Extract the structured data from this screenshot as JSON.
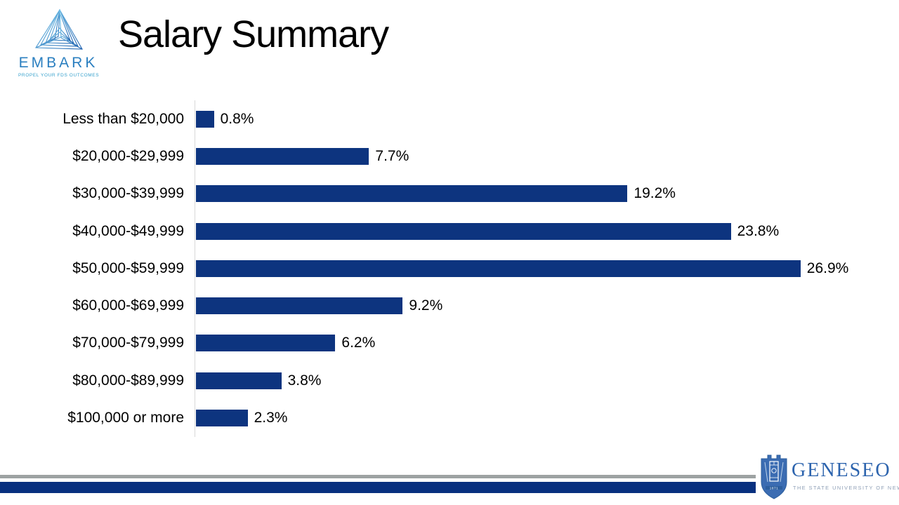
{
  "slide": {
    "title": "Salary Summary"
  },
  "logos": {
    "embark": {
      "name": "EMBARK",
      "tagline": "PROPEL YOUR FDS OUTCOMES"
    },
    "geneseo": {
      "name": "GENESEO",
      "tagline": "THE STATE UNIVERSITY OF NEW YORK",
      "founded": "1871"
    }
  },
  "chart_data": {
    "type": "bar",
    "orientation": "horizontal",
    "title": "Salary Summary",
    "categories": [
      "Less than $20,000",
      "$20,000-$29,999",
      "$30,000-$39,999",
      "$40,000-$49,999",
      "$50,000-$59,999",
      "$60,000-$69,999",
      "$70,000-$79,999",
      "$80,000-$89,999",
      "$100,000 or more"
    ],
    "values": [
      0.8,
      7.7,
      19.2,
      23.8,
      26.9,
      9.2,
      6.2,
      3.8,
      2.3
    ],
    "data_labels": [
      "0.8%",
      "7.7%",
      "19.2%",
      "23.8%",
      "26.9%",
      "9.2%",
      "6.2%",
      "3.8%",
      "2.3%"
    ],
    "xlim": [
      0,
      27
    ],
    "grid": false,
    "legend": false,
    "bar_color": "#0d347f",
    "axis_line_color": "#d8d8d8"
  },
  "footer": {
    "gray_color": "#9da2a2",
    "blue_color": "#08307f"
  }
}
